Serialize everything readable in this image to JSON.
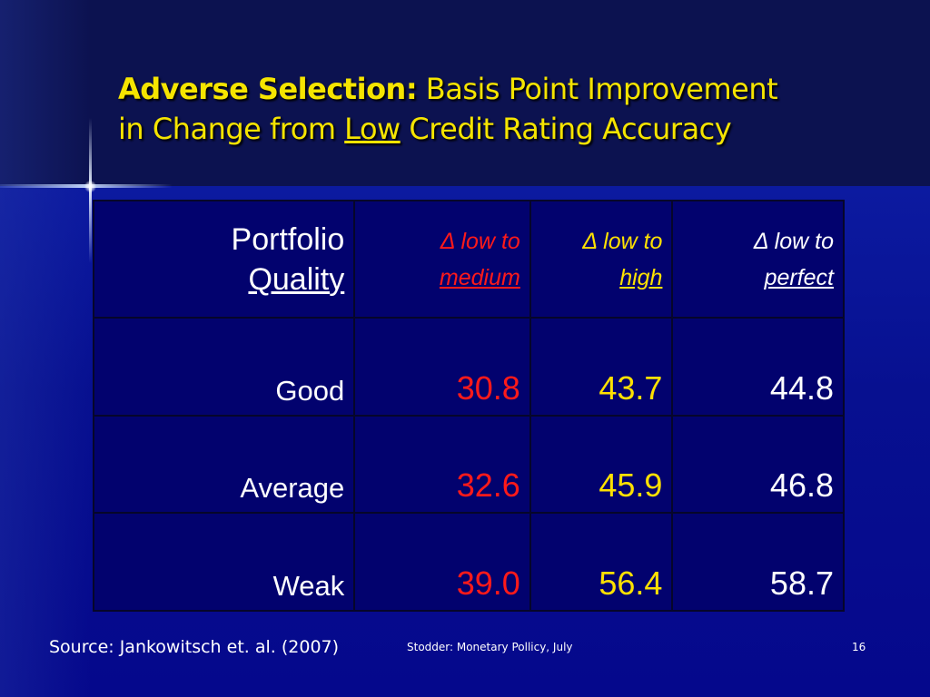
{
  "title": {
    "bold_part": "Adverse Selection:",
    "line1_rest": " Basis Point Improvement",
    "line2_pre": "in Change from ",
    "line2_underlined": "Low",
    "line2_post": " Credit Rating Accuracy"
  },
  "table": {
    "header": {
      "label_line1": "Portfolio",
      "label_line2": "Quality",
      "columns": [
        {
          "line1": "Δ low to",
          "line2": "medium"
        },
        {
          "line1": "Δ low to",
          "line2": "high"
        },
        {
          "line1": "Δ low to",
          "line2": "perfect"
        }
      ]
    },
    "rows": [
      {
        "label": "Good",
        "values": [
          "30.8",
          "43.7",
          "44.8"
        ]
      },
      {
        "label": "Average",
        "values": [
          "32.6",
          "45.9",
          "46.8"
        ]
      },
      {
        "label": "Weak",
        "values": [
          "39.0",
          "56.4",
          "58.7"
        ]
      }
    ]
  },
  "colors": {
    "medium": "#ff1a1a",
    "high": "#ffe100",
    "perfect": "#ffffff",
    "title": "#f5e400"
  },
  "footer": {
    "source": "Source: Jankowitsch et. al. (2007)",
    "center": "Stodder: Monetary Pollicy, July",
    "page_number": "16"
  }
}
